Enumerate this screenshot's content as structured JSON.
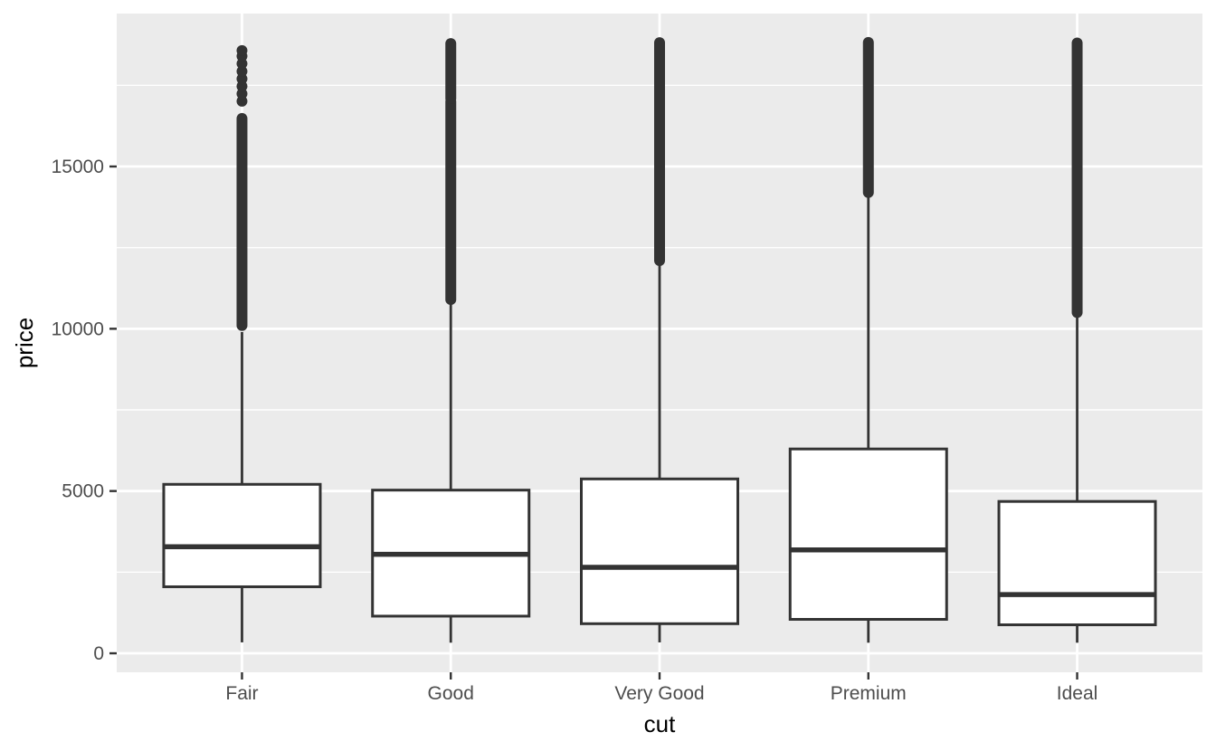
{
  "chart_data": {
    "type": "boxplot",
    "title": "",
    "xlabel": "cut",
    "ylabel": "price",
    "x_tick_labels": [
      "Fair",
      "Good",
      "Very Good",
      "Premium",
      "Ideal"
    ],
    "y_tick_labels": [
      "0",
      "5000",
      "10000",
      "15000"
    ],
    "y_ticks": [
      0,
      5000,
      10000,
      15000
    ],
    "y_minor_ticks": [
      2500,
      7500,
      12500,
      17500
    ],
    "ylim": [
      -585,
      19712
    ],
    "grid": "on",
    "legend": "none",
    "categories": [
      "Fair",
      "Good",
      "Very Good",
      "Premium",
      "Ideal"
    ],
    "series": [
      {
        "category": "Fair",
        "whisker_low": 337,
        "q1": 2050,
        "median": 3282,
        "q3": 5206,
        "whisker_high": 9900,
        "outlier_segments": [
          [
            10100,
            16480
          ]
        ],
        "outlier_points": [
          17010,
          17240,
          17470,
          17700,
          17930,
          18170,
          18400,
          18574
        ]
      },
      {
        "category": "Good",
        "whisker_low": 327,
        "q1": 1145,
        "median": 3050,
        "q3": 5028,
        "whisker_high": 10850,
        "outlier_segments": [
          [
            10900,
            17000
          ],
          [
            17090,
            18788
          ]
        ],
        "outlier_points": []
      },
      {
        "category": "Very Good",
        "whisker_low": 336,
        "q1": 912,
        "median": 2648,
        "q3": 5373,
        "whisker_high": 12050,
        "outlier_segments": [
          [
            12100,
            18818
          ]
        ],
        "outlier_points": []
      },
      {
        "category": "Premium",
        "whisker_low": 326,
        "q1": 1046,
        "median": 3185,
        "q3": 6296,
        "whisker_high": 14160,
        "outlier_segments": [
          [
            14200,
            18823
          ]
        ],
        "outlier_points": []
      },
      {
        "category": "Ideal",
        "whisker_low": 326,
        "q1": 878,
        "median": 1810,
        "q3": 4679,
        "whisker_high": 10370,
        "outlier_segments": [
          [
            10500,
            18806
          ]
        ],
        "outlier_points": []
      }
    ]
  },
  "colors": {
    "panel_background": "#EBEBEB",
    "gridline": "#FFFFFF",
    "box_stroke": "#333333",
    "box_fill": "#FFFFFF",
    "outlier": "#333333",
    "tick_mark": "#333333",
    "axis_text": "#4D4D4D",
    "axis_title": "#000000",
    "figure_background": "#FFFFFF"
  }
}
